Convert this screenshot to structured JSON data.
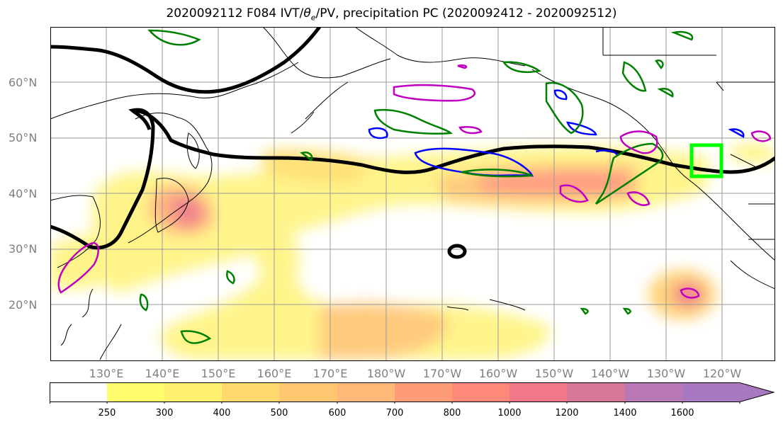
{
  "title_pre": "2020092112 F084 IVT/",
  "title_theta": "θ",
  "title_sub": "e",
  "title_post": "/PV, precipitation PC (2020092412 - 2020092512)",
  "lat_labels": [
    "60°N",
    "50°N",
    "40°N",
    "30°N",
    "20°N"
  ],
  "lon_labels": [
    "130°E",
    "140°E",
    "150°E",
    "160°E",
    "170°E",
    "180°W",
    "170°W",
    "160°W",
    "150°W",
    "140°W",
    "130°W",
    "120°W"
  ],
  "colorbar": {
    "ticks": [
      "250",
      "300",
      "400",
      "500",
      "600",
      "700",
      "800",
      "1000",
      "1200",
      "1400",
      "1600"
    ],
    "colors": [
      "#ffff6e",
      "#fff06e",
      "#ffd86e",
      "#ffc870",
      "#ffb878",
      "#ff9c78",
      "#ff8878",
      "#f07888",
      "#d87898",
      "#b878b8",
      "#a878c0"
    ]
  },
  "colors": {
    "under": "#ffffff",
    "theta_e_contour": "#000000",
    "pv_negative": "#0000ff",
    "pv_positive": "#008000",
    "pv_high": "#c000c0",
    "target_box": "#00ff00"
  }
}
